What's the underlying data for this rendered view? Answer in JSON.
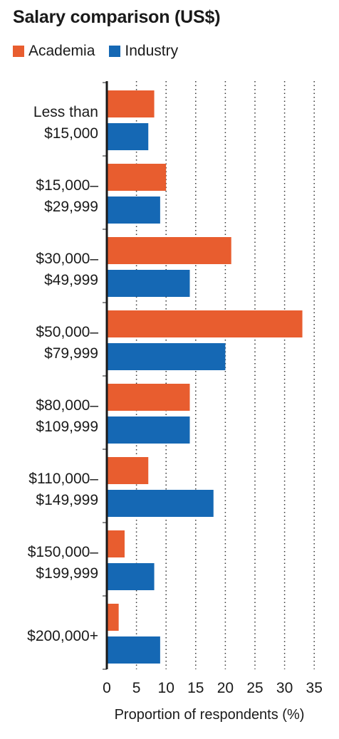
{
  "chart_data": {
    "type": "bar",
    "orientation": "horizontal",
    "title": "Salary comparison (US$)",
    "xlabel": "Proportion of respondents (%)",
    "ylabel": "",
    "xlim": [
      0,
      35
    ],
    "xticks": [
      "0",
      "5",
      "10",
      "15",
      "20",
      "25",
      "30",
      "35"
    ],
    "grid": "vertical dotted",
    "legend_position": "top-left",
    "categories": [
      [
        "Less than",
        "$15,000"
      ],
      [
        "$15,000–",
        "$29,999"
      ],
      [
        "$30,000–",
        "$49,999"
      ],
      [
        "$50,000–",
        "$79,999"
      ],
      [
        "$80,000–",
        "$109,999"
      ],
      [
        "$110,000–",
        "$149,999"
      ],
      [
        "$150,000–",
        "$199,999"
      ],
      [
        "$200,000+"
      ]
    ],
    "series": [
      {
        "name": "Academia",
        "color": "#e85d2f",
        "values": [
          8,
          10,
          21,
          33,
          14,
          7,
          3,
          2
        ]
      },
      {
        "name": "Industry",
        "color": "#1568b4",
        "values": [
          7,
          9,
          14,
          20,
          14,
          18,
          8,
          9
        ]
      }
    ]
  }
}
